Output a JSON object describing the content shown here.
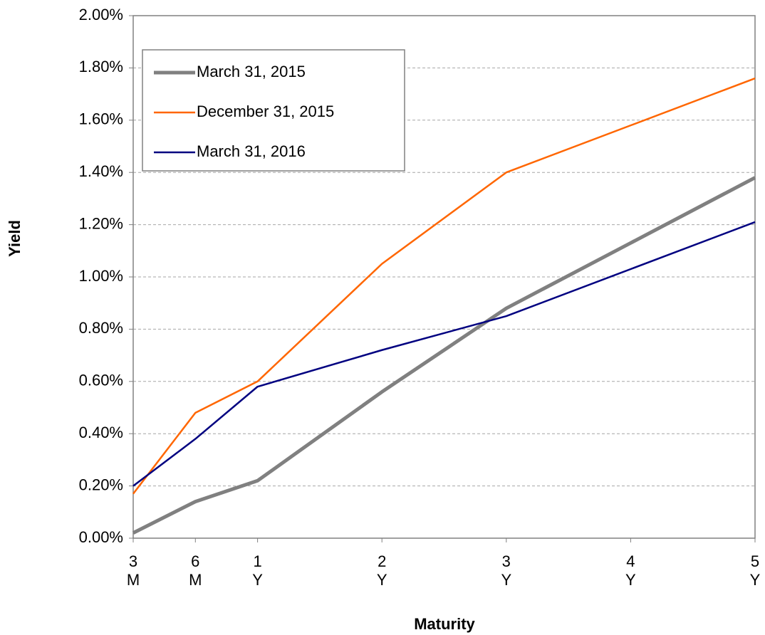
{
  "chart_data": {
    "type": "line",
    "x_label": "Maturity",
    "y_label": "Yield",
    "x": [
      0,
      0.5,
      1,
      2,
      3,
      4,
      5
    ],
    "xlim": [
      0,
      5
    ],
    "xticks": [
      {
        "value": 0,
        "label": "3\nM"
      },
      {
        "value": 0.5,
        "label": "6\nM"
      },
      {
        "value": 1,
        "label": "1\nY"
      },
      {
        "value": 2,
        "label": "2\nY"
      },
      {
        "value": 3,
        "label": "3\nY"
      },
      {
        "value": 4,
        "label": "4\nY"
      },
      {
        "value": 5,
        "label": "5\nY"
      }
    ],
    "ylim": [
      0,
      2
    ],
    "yticks": [
      {
        "value": 0,
        "label": "0.00%"
      },
      {
        "value": 0.2,
        "label": "0.20%"
      },
      {
        "value": 0.4,
        "label": "0.40%"
      },
      {
        "value": 0.6,
        "label": "0.60%"
      },
      {
        "value": 0.8,
        "label": "0.80%"
      },
      {
        "value": 1,
        "label": "1.00%"
      },
      {
        "value": 1.2,
        "label": "1.20%"
      },
      {
        "value": 1.4,
        "label": "1.40%"
      },
      {
        "value": 1.6,
        "label": "1.60%"
      },
      {
        "value": 1.8,
        "label": "1.80%"
      },
      {
        "value": 2,
        "label": "2.00%"
      }
    ],
    "grid": true,
    "legend": "upper left",
    "series": [
      {
        "name": "March 31, 2015",
        "color": "#808080",
        "width": 5,
        "values": [
          0.02,
          0.14,
          0.22,
          0.56,
          0.88,
          1.13,
          1.38
        ]
      },
      {
        "name": "December 31, 2015",
        "color": "#ff6600",
        "width": 2.5,
        "values": [
          0.17,
          0.48,
          0.6,
          1.05,
          1.4,
          1.58,
          1.76
        ]
      },
      {
        "name": "March 31, 2016",
        "color": "#000080",
        "width": 2.5,
        "values": [
          0.2,
          0.38,
          0.58,
          0.72,
          0.85,
          1.03,
          1.21
        ]
      }
    ]
  }
}
